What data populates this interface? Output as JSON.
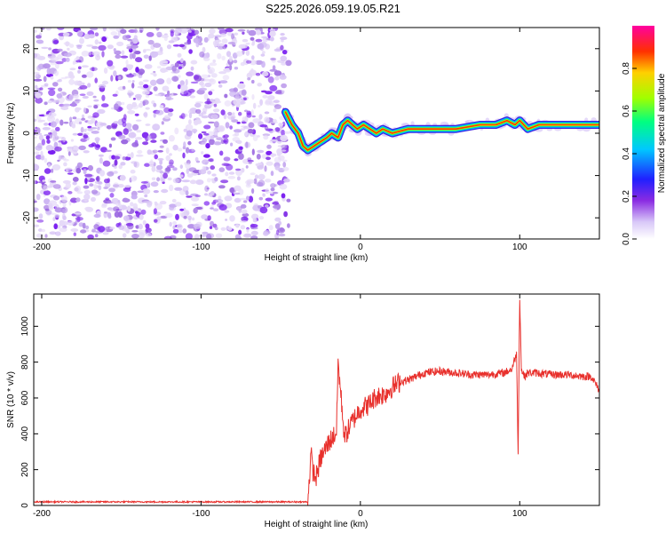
{
  "title": "S225.2026.059.19.05.R21",
  "chart_data": [
    {
      "type": "heatmap",
      "name": "spectrogram",
      "xlabel": "Height of straight line (km)",
      "ylabel": "Frequency (Hz)",
      "xlim": [
        -205,
        150
      ],
      "ylim": [
        -25,
        25
      ],
      "xticks": [
        -200,
        -100,
        0,
        100
      ],
      "yticks": [
        -20,
        -10,
        0,
        10,
        20
      ],
      "noise_region_x": [
        -205,
        -45
      ],
      "signal_track": {
        "x": [
          -47,
          -43,
          -39,
          -36,
          -33,
          -29,
          -25,
          -21,
          -18,
          -14,
          -11,
          -8,
          -5,
          -2,
          2,
          6,
          10,
          14,
          20,
          30,
          45,
          60,
          75,
          85,
          92,
          97,
          100,
          105,
          112,
          130,
          150
        ],
        "freq": [
          5,
          2,
          0,
          -3,
          -4,
          -3,
          -2,
          -1,
          0,
          -1,
          2,
          3,
          2,
          1,
          2,
          1,
          0,
          1,
          0,
          1,
          1,
          1,
          2,
          2,
          3,
          2,
          3,
          1,
          2,
          2,
          2
        ]
      },
      "colorbar": {
        "label": "Normalized spectral amplitude",
        "range": [
          0.0,
          1.0
        ],
        "ticks": [
          "0.0",
          "0.2",
          "0.4",
          "0.6",
          "0.8"
        ]
      }
    },
    {
      "type": "line",
      "name": "snr",
      "xlabel": "Height of straight line (km)",
      "ylabel": "SNR (10 * v/v)",
      "xlim": [
        -205,
        150
      ],
      "ylim": [
        0,
        1180
      ],
      "xticks": [
        -200,
        -100,
        0,
        100
      ],
      "yticks": [
        0,
        200,
        400,
        600,
        800,
        1000
      ],
      "color": "#e8302c",
      "series": [
        {
          "name": "SNR",
          "x": [
            -205,
            -150,
            -100,
            -50,
            -33,
            -31,
            -30,
            -28,
            -25,
            -20,
            -15,
            -14,
            -10,
            -5,
            0,
            5,
            10,
            15,
            20,
            25,
            30,
            35,
            40,
            50,
            60,
            70,
            80,
            90,
            95,
            98,
            99,
            100,
            101,
            103,
            105,
            110,
            120,
            130,
            140,
            145,
            150
          ],
          "y": [
            20,
            20,
            20,
            20,
            20,
            290,
            200,
            150,
            260,
            350,
            410,
            800,
            380,
            470,
            540,
            560,
            610,
            620,
            660,
            690,
            700,
            720,
            740,
            750,
            740,
            730,
            730,
            740,
            760,
            850,
            300,
            1170,
            760,
            720,
            740,
            740,
            730,
            730,
            720,
            720,
            640
          ]
        }
      ]
    }
  ]
}
